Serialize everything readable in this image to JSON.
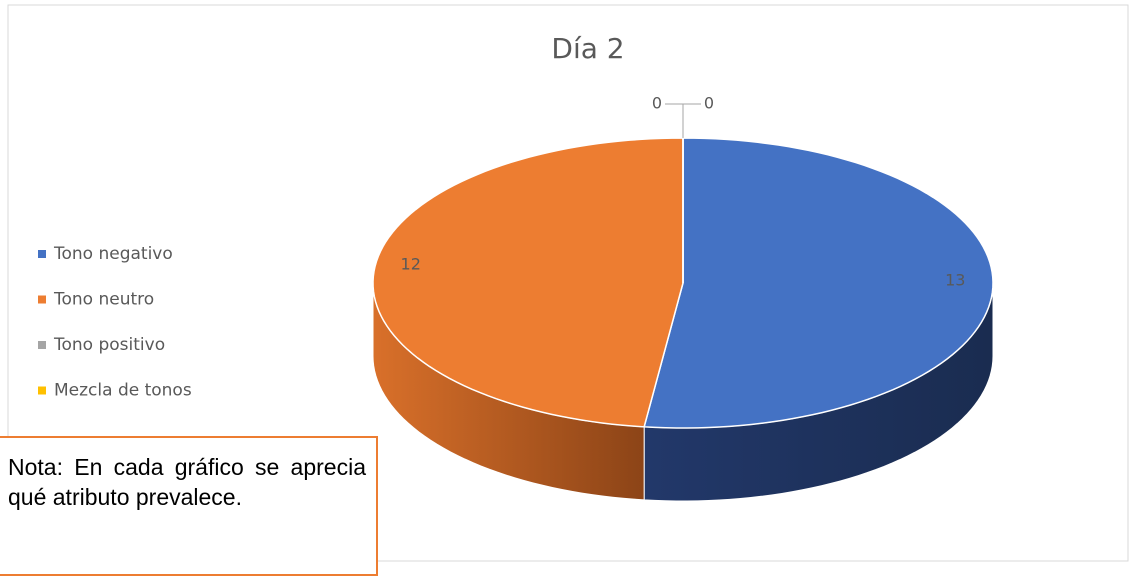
{
  "chart_data": {
    "type": "pie3d",
    "title": "Día 2",
    "categories": [
      "Tono negativo",
      "Tono neutro",
      "Tono positivo",
      "Mezcla de tonos"
    ],
    "values": [
      13,
      12,
      0,
      0
    ],
    "colors": [
      "#4472c4",
      "#ed7d31",
      "#a5a5a5",
      "#ffc000"
    ],
    "legend": "left",
    "annotation": "Nota: En cada gráfico se aprecia qué atributo prevalece."
  }
}
